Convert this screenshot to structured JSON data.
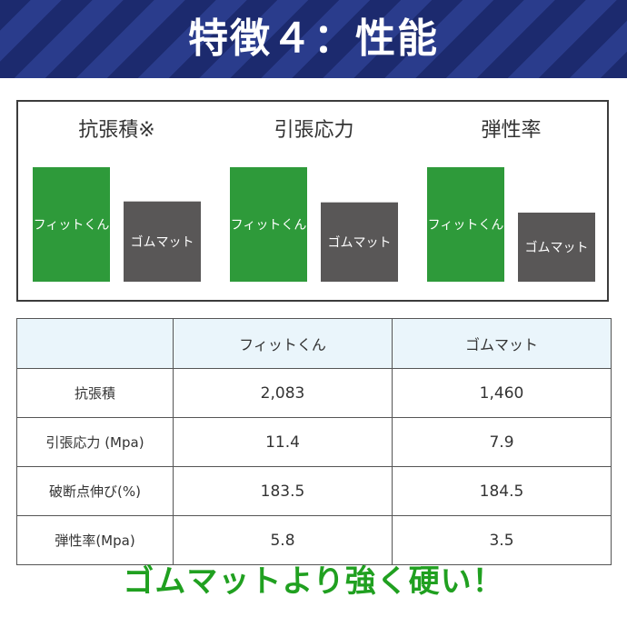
{
  "header": {
    "title": "特徴４：性能"
  },
  "colors": {
    "fit_bar": "#2e9a3a",
    "mat_bar": "#595757",
    "header_bg": "#1c2a6e",
    "table_header_bg": "#eaf5fb",
    "footer_text": "#20a020"
  },
  "chart_data": {
    "type": "bar",
    "groups": [
      {
        "title": "抗張積※",
        "bars": [
          {
            "label": "フィットくん",
            "value": 2083
          },
          {
            "label": "ゴムマット",
            "value": 1460
          }
        ]
      },
      {
        "title": "引張応力",
        "bars": [
          {
            "label": "フィットくん",
            "value": 11.4
          },
          {
            "label": "ゴムマット",
            "value": 7.9
          }
        ]
      },
      {
        "title": "弾性率",
        "bars": [
          {
            "label": "フィットくん",
            "value": 5.8
          },
          {
            "label": "ゴムマット",
            "value": 3.5
          }
        ]
      }
    ]
  },
  "table": {
    "headers": [
      "",
      "フィットくん",
      "ゴムマット"
    ],
    "rows": [
      [
        "抗張積",
        "2,083",
        "1,460"
      ],
      [
        "引張応力 (Mpa)",
        "11.4",
        "7.9"
      ],
      [
        "破断点伸び(%)",
        "183.5",
        "184.5"
      ],
      [
        "弾性率(Mpa)",
        "5.8",
        "3.5"
      ]
    ]
  },
  "footer": {
    "text": "ゴムマットより強く硬い！"
  }
}
